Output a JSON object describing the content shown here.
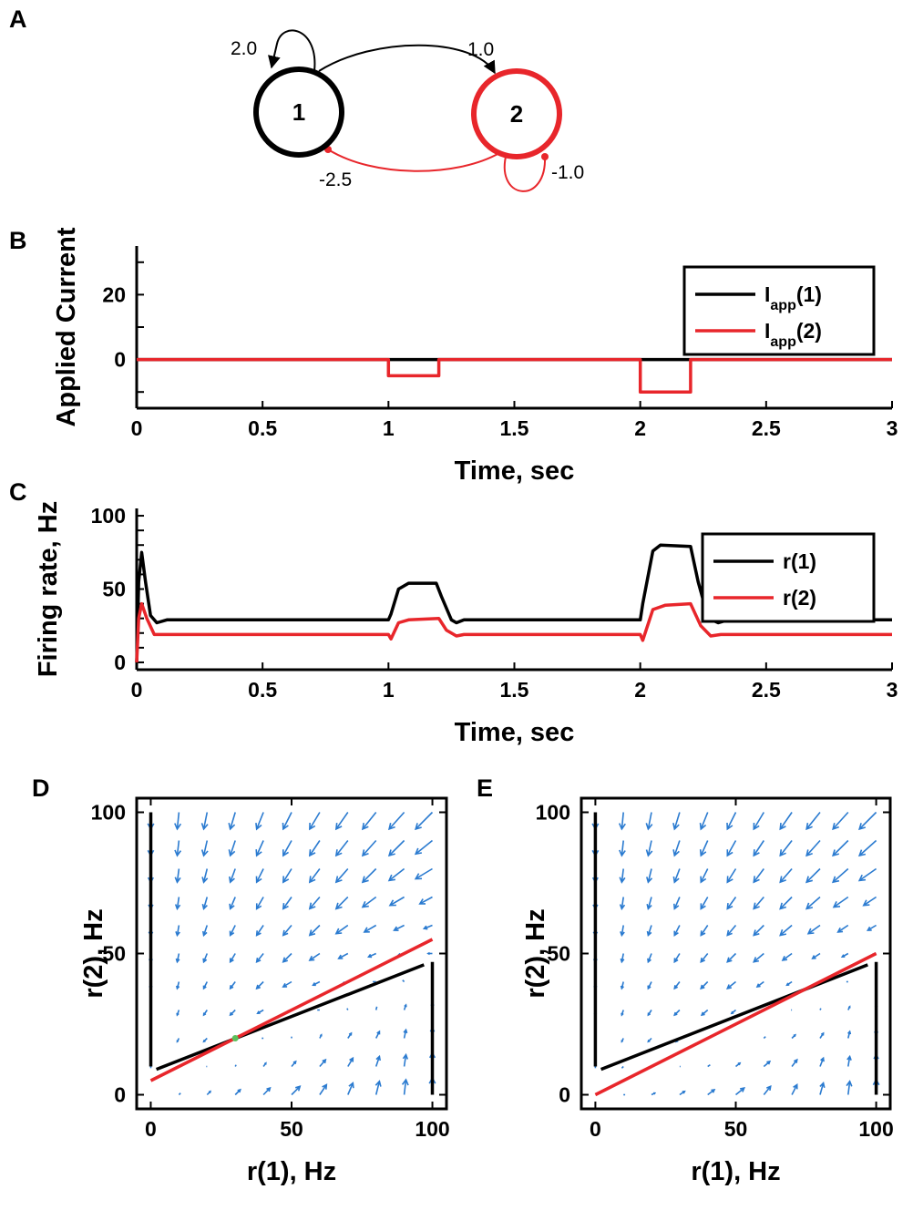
{
  "colors": {
    "black": "#000000",
    "red": "#e8262b",
    "quiver": "#2b7bd0",
    "fixed_point": "#5cc05c"
  },
  "diagram": {
    "panel_label": "A",
    "nodes": [
      {
        "label": "1",
        "color": "#000000"
      },
      {
        "label": "2",
        "color": "#e8262b"
      }
    ],
    "weights": {
      "w11": "2.0",
      "w12": "1.0",
      "w21": "-2.5",
      "w22": "-1.0"
    }
  },
  "chart_data": [
    {
      "panel": "B",
      "type": "line",
      "xlabel": "Time, sec",
      "ylabel": "Applied Current",
      "xlim": [
        0,
        3
      ],
      "ylim": [
        -15,
        35
      ],
      "xticks": [
        "0",
        "0.5",
        "1",
        "1.5",
        "2",
        "2.5",
        "3"
      ],
      "yticks": [
        "0",
        "20"
      ],
      "legend_position": "top-right",
      "series": [
        {
          "name": "I",
          "sub": "app",
          "suffix": "(1)",
          "color": "#000000",
          "points": [
            [
              0,
              0
            ],
            [
              3,
              0
            ]
          ]
        },
        {
          "name": "I",
          "sub": "app",
          "suffix": "(2)",
          "color": "#e8262b",
          "points": [
            [
              0,
              0
            ],
            [
              1,
              0
            ],
            [
              1,
              -5
            ],
            [
              1.2,
              -5
            ],
            [
              1.2,
              0
            ],
            [
              2,
              0
            ],
            [
              2,
              -10
            ],
            [
              2.2,
              -10
            ],
            [
              2.2,
              0
            ],
            [
              3,
              0
            ]
          ]
        }
      ]
    },
    {
      "panel": "C",
      "type": "line",
      "xlabel": "Time, sec",
      "ylabel": "Firing rate, Hz",
      "xlim": [
        0,
        3
      ],
      "ylim": [
        -5,
        105
      ],
      "xticks": [
        "0",
        "0.5",
        "1",
        "1.5",
        "2",
        "2.5",
        "3"
      ],
      "yticks": [
        "0",
        "50",
        "100"
      ],
      "legend_position": "top-right",
      "series": [
        {
          "name": "r(1)",
          "color": "#000000",
          "points": [
            [
              0,
              0
            ],
            [
              0.008,
              55
            ],
            [
              0.02,
              75
            ],
            [
              0.035,
              55
            ],
            [
              0.055,
              32
            ],
            [
              0.08,
              27
            ],
            [
              0.12,
              29
            ],
            [
              1.0,
              29
            ],
            [
              1.01,
              33
            ],
            [
              1.04,
              50
            ],
            [
              1.08,
              54
            ],
            [
              1.19,
              54
            ],
            [
              1.21,
              45
            ],
            [
              1.25,
              29
            ],
            [
              1.27,
              27
            ],
            [
              1.3,
              29
            ],
            [
              2.0,
              29
            ],
            [
              2.01,
              40
            ],
            [
              2.05,
              76
            ],
            [
              2.08,
              80
            ],
            [
              2.2,
              79
            ],
            [
              2.23,
              55
            ],
            [
              2.27,
              30
            ],
            [
              2.31,
              27
            ],
            [
              2.35,
              29
            ],
            [
              3,
              29
            ]
          ]
        },
        {
          "name": "r(2)",
          "color": "#e8262b",
          "points": [
            [
              0,
              0
            ],
            [
              0.008,
              30
            ],
            [
              0.02,
              40
            ],
            [
              0.04,
              30
            ],
            [
              0.07,
              19
            ],
            [
              0.12,
              19
            ],
            [
              1.0,
              19
            ],
            [
              1.01,
              16
            ],
            [
              1.04,
              27
            ],
            [
              1.08,
              29
            ],
            [
              1.2,
              30
            ],
            [
              1.23,
              22
            ],
            [
              1.27,
              18
            ],
            [
              1.3,
              19
            ],
            [
              2.0,
              19
            ],
            [
              2.01,
              15
            ],
            [
              2.05,
              36
            ],
            [
              2.1,
              39
            ],
            [
              2.2,
              40
            ],
            [
              2.24,
              25
            ],
            [
              2.28,
              18
            ],
            [
              2.32,
              19
            ],
            [
              3,
              19
            ]
          ]
        }
      ]
    },
    {
      "panel": "D",
      "type": "scatter",
      "xlabel": "r(1), Hz",
      "ylabel": "r(2), Hz",
      "xlim": [
        -5,
        105
      ],
      "ylim": [
        -5,
        105
      ],
      "xticks": [
        "0",
        "50",
        "100"
      ],
      "yticks": [
        "0",
        "50",
        "100"
      ],
      "quiver": {
        "grid_start": 0,
        "grid_step": 10,
        "grid_count": 11,
        "w11": 2.0,
        "w12": 1.0,
        "w21": -2.5,
        "w22": -1.0,
        "I1": 0,
        "I2": 0
      },
      "nullclines": [
        {
          "variable": "r(1)",
          "color": "#000000",
          "segments": [
            [
              [
                0,
                100
              ],
              [
                0,
                10
              ]
            ],
            [
              [
                2,
                9
              ],
              [
                97,
                46
              ]
            ],
            [
              [
                100,
                47
              ],
              [
                100,
                0
              ]
            ]
          ]
        },
        {
          "variable": "r(2)",
          "color": "#e8262b",
          "segments": [
            [
              [
                0,
                5
              ],
              [
                100,
                55
              ]
            ]
          ]
        }
      ],
      "fixed_point": [
        30,
        20
      ]
    },
    {
      "panel": "E",
      "type": "scatter",
      "xlabel": "r(1), Hz",
      "ylabel": "r(2), Hz",
      "xlim": [
        -5,
        105
      ],
      "ylim": [
        -5,
        105
      ],
      "xticks": [
        "0",
        "50",
        "100"
      ],
      "yticks": [
        "0",
        "50",
        "100"
      ],
      "quiver": {
        "grid_start": 0,
        "grid_step": 10,
        "grid_count": 11,
        "w11": 2.0,
        "w12": 1.0,
        "w21": -2.5,
        "w22": -1.0,
        "I1": 0,
        "I2": -10
      },
      "nullclines": [
        {
          "variable": "r(1)",
          "color": "#000000",
          "segments": [
            [
              [
                0,
                100
              ],
              [
                0,
                10
              ]
            ],
            [
              [
                2,
                9
              ],
              [
                97,
                46
              ]
            ],
            [
              [
                100,
                47
              ],
              [
                100,
                0
              ]
            ]
          ]
        },
        {
          "variable": "r(2)",
          "color": "#e8262b",
          "segments": [
            [
              [
                0,
                0
              ],
              [
                100,
                50
              ]
            ]
          ]
        }
      ]
    }
  ]
}
